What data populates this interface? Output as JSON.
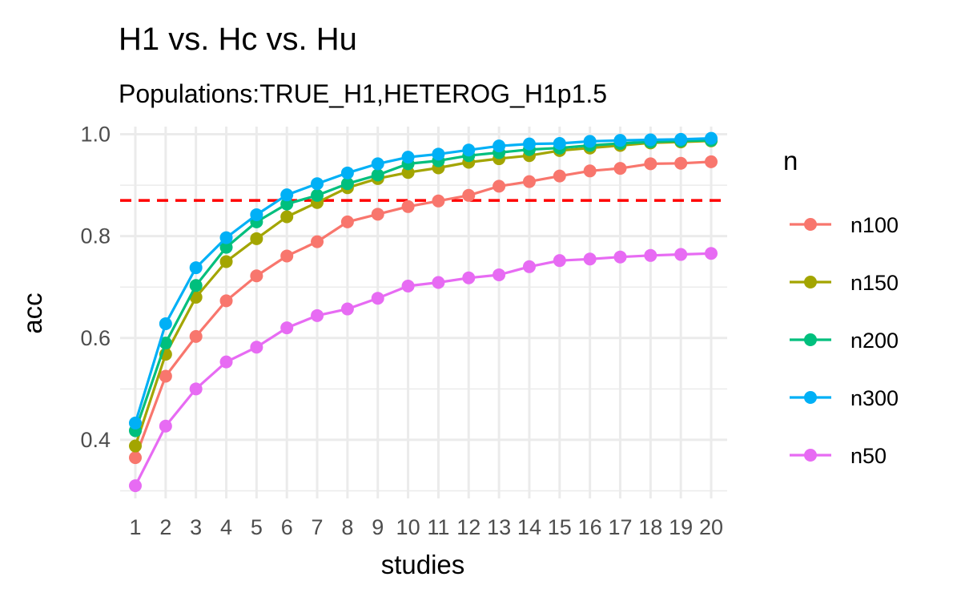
{
  "chart_data": {
    "type": "line",
    "title": "H1 vs. Hc vs. Hu",
    "subtitle": "Populations:TRUE_H1,HETEROG_H1p1.5",
    "xlabel": "studies",
    "ylabel": "acc",
    "x": [
      "1",
      "2",
      "3",
      "4",
      "5",
      "6",
      "7",
      "8",
      "9",
      "10",
      "11",
      "12",
      "13",
      "14",
      "15",
      "16",
      "17",
      "18",
      "19",
      "20"
    ],
    "ylim": [
      0.285,
      1.015
    ],
    "yticks": [
      0.4,
      0.6,
      0.8,
      1.0
    ],
    "ytick_labels": [
      "0.4",
      "0.6",
      "0.8",
      "1.0"
    ],
    "grid": true,
    "legend_title": "n",
    "legend_position": "right",
    "hline": {
      "y": 0.87,
      "color": "#ff0000",
      "style": "dashed"
    },
    "series": [
      {
        "name": "n100",
        "color": "#F8766D",
        "values": [
          0.365,
          0.525,
          0.603,
          0.673,
          0.722,
          0.761,
          0.789,
          0.828,
          0.843,
          0.858,
          0.869,
          0.88,
          0.898,
          0.907,
          0.918,
          0.928,
          0.933,
          0.942,
          0.943,
          0.946
        ]
      },
      {
        "name": "n150",
        "color": "#A3A500",
        "values": [
          0.388,
          0.568,
          0.68,
          0.75,
          0.795,
          0.838,
          0.866,
          0.895,
          0.913,
          0.925,
          0.934,
          0.945,
          0.952,
          0.958,
          0.968,
          0.973,
          0.978,
          0.983,
          0.985,
          0.987
        ]
      },
      {
        "name": "n200",
        "color": "#00BF7D",
        "values": [
          0.418,
          0.59,
          0.703,
          0.778,
          0.828,
          0.863,
          0.88,
          0.903,
          0.92,
          0.942,
          0.948,
          0.958,
          0.964,
          0.97,
          0.973,
          0.978,
          0.982,
          0.985,
          0.987,
          0.988
        ]
      },
      {
        "name": "n300",
        "color": "#00B0F6",
        "values": [
          0.433,
          0.628,
          0.738,
          0.797,
          0.842,
          0.881,
          0.903,
          0.924,
          0.942,
          0.955,
          0.961,
          0.969,
          0.977,
          0.981,
          0.982,
          0.986,
          0.988,
          0.989,
          0.99,
          0.992
        ]
      },
      {
        "name": "n50",
        "color": "#E76BF3",
        "values": [
          0.31,
          0.427,
          0.5,
          0.553,
          0.582,
          0.62,
          0.644,
          0.657,
          0.678,
          0.702,
          0.709,
          0.718,
          0.724,
          0.74,
          0.752,
          0.755,
          0.759,
          0.762,
          0.764,
          0.766
        ]
      }
    ]
  }
}
